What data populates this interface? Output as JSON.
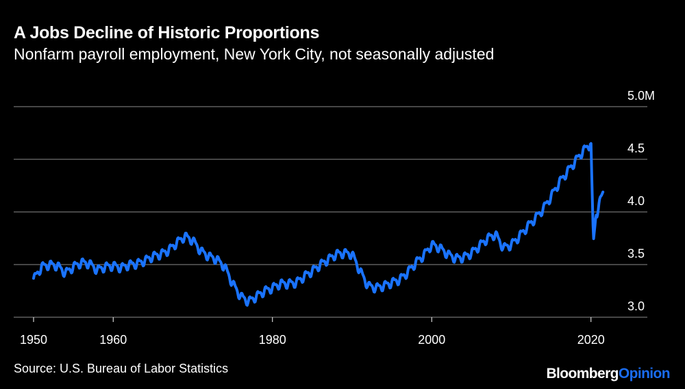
{
  "header": {
    "title": "A Jobs Decline of Historic Proportions",
    "subtitle": "Nonfarm payroll employment, New York City, not seasonally adjusted"
  },
  "footer": {
    "source": "Source: U.S. Bureau of Labor Statistics",
    "brand_primary": "Bloomberg",
    "brand_secondary": "Opinion"
  },
  "colors": {
    "background": "#000000",
    "line": "#1a73ff",
    "grid": "#8c8c8c",
    "brand_accent": "#1a6cf0"
  },
  "chart_data": {
    "type": "line",
    "title": "A Jobs Decline of Historic Proportions",
    "subtitle": "Nonfarm payroll employment, New York City, not seasonally adjusted",
    "xlabel": "",
    "ylabel": "",
    "xlim": [
      1950,
      2022
    ],
    "ylim": [
      3.0,
      5.0
    ],
    "y_unit": "millions",
    "grid": true,
    "legend": "none",
    "x_ticks": [
      {
        "value": 1950,
        "label": "1950"
      },
      {
        "value": 1960,
        "label": "1960"
      },
      {
        "value": 1980,
        "label": "1980"
      },
      {
        "value": 2000,
        "label": "2000"
      },
      {
        "value": 2020,
        "label": "2020"
      }
    ],
    "y_ticks": [
      {
        "value": 3.0,
        "label": "3.0"
      },
      {
        "value": 3.5,
        "label": "3.5"
      },
      {
        "value": 4.0,
        "label": "4.0"
      },
      {
        "value": 4.5,
        "label": "4.5"
      },
      {
        "value": 5.0,
        "label": "5.0M"
      }
    ],
    "series": [
      {
        "x": [
          1950,
          1951,
          1952,
          1953,
          1954,
          1955,
          1956,
          1957,
          1958,
          1959,
          1960,
          1961,
          1962,
          1963,
          1964,
          1965,
          1966,
          1967,
          1968,
          1969,
          1970,
          1971,
          1972,
          1973,
          1974,
          1975,
          1976,
          1977,
          1978,
          1979,
          1980,
          1981,
          1982,
          1983,
          1984,
          1985,
          1986,
          1987,
          1988,
          1989,
          1990,
          1991,
          1992,
          1993,
          1994,
          1995,
          1996,
          1997,
          1998,
          1999,
          2000,
          2001,
          2002,
          2003,
          2004,
          2005,
          2006,
          2007,
          2008,
          2009,
          2010,
          2011,
          2012,
          2013,
          2014,
          2015,
          2016,
          2017,
          2018,
          2019,
          2020.0,
          2020.3,
          2020.6,
          2021.0,
          2021.5
        ],
        "values": [
          3.36,
          3.48,
          3.5,
          3.49,
          3.42,
          3.48,
          3.52,
          3.51,
          3.45,
          3.48,
          3.49,
          3.47,
          3.5,
          3.51,
          3.54,
          3.58,
          3.6,
          3.64,
          3.71,
          3.77,
          3.73,
          3.63,
          3.58,
          3.55,
          3.48,
          3.32,
          3.2,
          3.15,
          3.2,
          3.25,
          3.28,
          3.32,
          3.32,
          3.33,
          3.39,
          3.44,
          3.5,
          3.55,
          3.6,
          3.61,
          3.6,
          3.44,
          3.3,
          3.28,
          3.3,
          3.33,
          3.36,
          3.43,
          3.52,
          3.59,
          3.69,
          3.66,
          3.6,
          3.56,
          3.57,
          3.61,
          3.68,
          3.75,
          3.79,
          3.66,
          3.69,
          3.77,
          3.86,
          3.94,
          4.03,
          4.15,
          4.28,
          4.38,
          4.48,
          4.58,
          4.65,
          3.72,
          3.95,
          4.07,
          4.18
        ]
      }
    ],
    "annotations": []
  }
}
